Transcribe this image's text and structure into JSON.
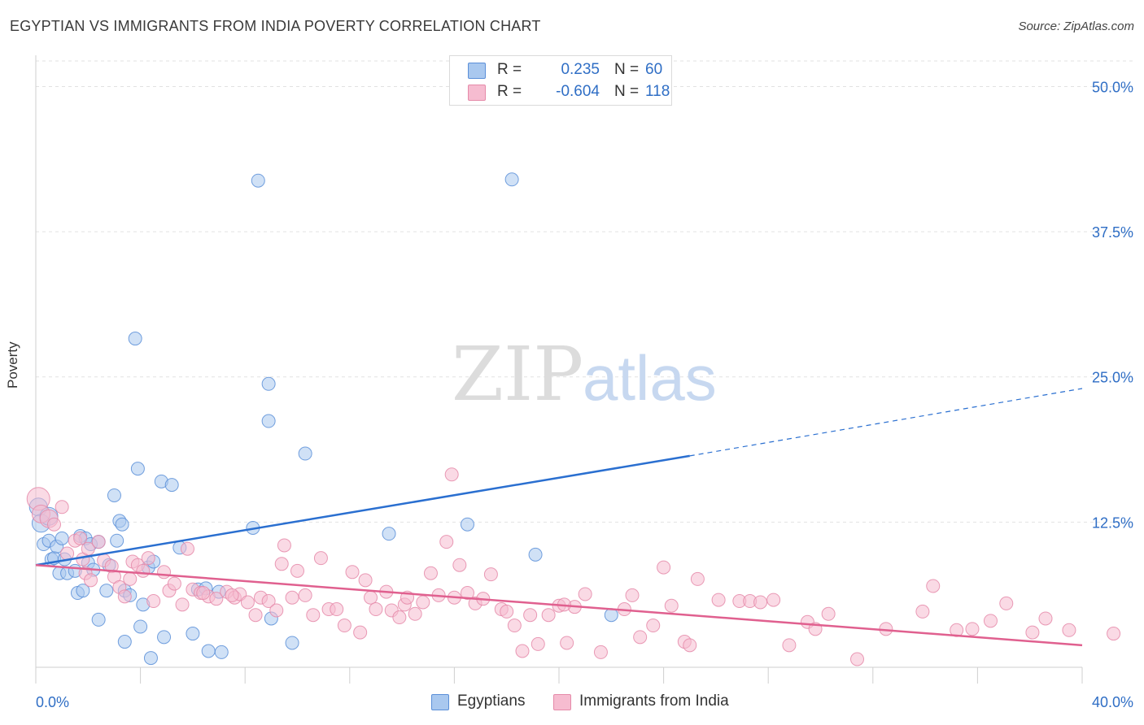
{
  "title": "EGYPTIAN VS IMMIGRANTS FROM INDIA POVERTY CORRELATION CHART",
  "source": "Source: ZipAtlas.com",
  "watermark": {
    "zip": "ZIP",
    "atlas": "atlas"
  },
  "legend": {
    "r_label": "R =",
    "n_label": "N =",
    "rows": [
      {
        "r": "0.235",
        "n": "60",
        "color": "#a9c8ef",
        "border": "#5b8fd8"
      },
      {
        "r": "-0.604",
        "n": "118",
        "color": "#f6bcd0",
        "border": "#e58aa9"
      }
    ]
  },
  "bottom_legend": [
    {
      "label": "Egyptians",
      "color": "#a9c8ef",
      "border": "#5b8fd8"
    },
    {
      "label": "Immigrants from India",
      "color": "#f6bcd0",
      "border": "#e58aa9"
    }
  ],
  "chart_data": {
    "type": "scatter",
    "title": "EGYPTIAN VS IMMIGRANTS FROM INDIA POVERTY CORRELATION CHART",
    "xlabel": "",
    "ylabel": "Poverty",
    "xlim": [
      0,
      40
    ],
    "ylim": [
      0,
      52.2
    ],
    "x_tick_labels": [
      {
        "value": 0,
        "label": "0.0%"
      },
      {
        "value": 40,
        "label": "40.0%"
      }
    ],
    "y_tick_labels": [
      {
        "value": 12.5,
        "label": "12.5%"
      },
      {
        "value": 25,
        "label": "25.0%"
      },
      {
        "value": 37.5,
        "label": "37.5%"
      },
      {
        "value": 50,
        "label": "50.0%"
      }
    ],
    "grid": true,
    "series": [
      {
        "name": "Egyptians",
        "color": "#5b8fd8",
        "fill": "#a9c8ef",
        "trendline": {
          "x0": 0,
          "y0": 8.8,
          "x1": 25,
          "y1": 18.2,
          "dashed_to_x": 40,
          "dashed_to_y": 24.0,
          "color": "#2a6fd0"
        },
        "points": [
          [
            0.1,
            13.8
          ],
          [
            0.2,
            12.4
          ],
          [
            0.3,
            10.6
          ],
          [
            0.5,
            13.0
          ],
          [
            0.5,
            10.9
          ],
          [
            0.6,
            9.3
          ],
          [
            0.7,
            9.4
          ],
          [
            0.8,
            10.4
          ],
          [
            0.9,
            8.1
          ],
          [
            1.0,
            11.1
          ],
          [
            1.1,
            9.3
          ],
          [
            1.2,
            8.1
          ],
          [
            1.5,
            8.3
          ],
          [
            1.6,
            6.4
          ],
          [
            1.7,
            11.3
          ],
          [
            1.8,
            6.6
          ],
          [
            1.9,
            11.1
          ],
          [
            2.0,
            9.0
          ],
          [
            2.1,
            10.6
          ],
          [
            2.2,
            8.4
          ],
          [
            2.4,
            10.8
          ],
          [
            2.4,
            4.1
          ],
          [
            2.7,
            6.6
          ],
          [
            2.8,
            8.8
          ],
          [
            3.0,
            14.8
          ],
          [
            3.1,
            10.9
          ],
          [
            3.2,
            12.6
          ],
          [
            3.3,
            12.3
          ],
          [
            3.4,
            6.6
          ],
          [
            3.4,
            2.2
          ],
          [
            3.6,
            6.2
          ],
          [
            3.8,
            28.3
          ],
          [
            3.9,
            17.1
          ],
          [
            4.0,
            3.5
          ],
          [
            4.1,
            5.4
          ],
          [
            4.3,
            8.6
          ],
          [
            4.4,
            0.8
          ],
          [
            4.5,
            9.1
          ],
          [
            4.8,
            16.0
          ],
          [
            4.9,
            2.6
          ],
          [
            5.2,
            15.7
          ],
          [
            5.5,
            10.3
          ],
          [
            6.0,
            2.9
          ],
          [
            6.2,
            6.7
          ],
          [
            6.5,
            6.8
          ],
          [
            6.6,
            1.4
          ],
          [
            7.1,
            1.3
          ],
          [
            8.3,
            12.0
          ],
          [
            8.5,
            41.9
          ],
          [
            8.9,
            24.4
          ],
          [
            8.9,
            21.2
          ],
          [
            9.0,
            4.2
          ],
          [
            9.8,
            2.1
          ],
          [
            10.3,
            18.4
          ],
          [
            13.5,
            11.5
          ],
          [
            16.5,
            12.3
          ],
          [
            18.2,
            42.0
          ],
          [
            19.1,
            9.7
          ],
          [
            22.0,
            4.5
          ],
          [
            7.0,
            6.5
          ]
        ]
      },
      {
        "name": "Immigrants from India",
        "color": "#e58aa9",
        "fill": "#f6bcd0",
        "trendline": {
          "x0": 0,
          "y0": 8.8,
          "x1": 40,
          "y1": 1.9,
          "color": "#e0608f"
        },
        "points": [
          [
            0.1,
            14.5
          ],
          [
            0.2,
            13.2
          ],
          [
            0.5,
            12.8
          ],
          [
            0.7,
            12.3
          ],
          [
            1.0,
            13.8
          ],
          [
            1.2,
            9.8
          ],
          [
            1.5,
            10.9
          ],
          [
            1.7,
            11.1
          ],
          [
            1.8,
            9.3
          ],
          [
            1.9,
            8.1
          ],
          [
            2.0,
            10.2
          ],
          [
            2.1,
            7.5
          ],
          [
            2.4,
            10.8
          ],
          [
            2.6,
            9.2
          ],
          [
            2.9,
            8.7
          ],
          [
            3.0,
            7.8
          ],
          [
            3.2,
            6.9
          ],
          [
            3.4,
            6.1
          ],
          [
            3.6,
            7.6
          ],
          [
            3.7,
            9.1
          ],
          [
            3.9,
            8.8
          ],
          [
            4.1,
            8.3
          ],
          [
            4.3,
            9.4
          ],
          [
            4.5,
            5.7
          ],
          [
            4.9,
            8.2
          ],
          [
            5.1,
            6.6
          ],
          [
            5.3,
            7.2
          ],
          [
            5.6,
            5.4
          ],
          [
            5.8,
            10.2
          ],
          [
            6.0,
            6.7
          ],
          [
            6.3,
            6.4
          ],
          [
            6.6,
            6.1
          ],
          [
            6.9,
            5.9
          ],
          [
            7.3,
            6.5
          ],
          [
            7.6,
            6.0
          ],
          [
            7.8,
            6.3
          ],
          [
            8.1,
            5.6
          ],
          [
            8.4,
            4.5
          ],
          [
            8.6,
            6.0
          ],
          [
            8.9,
            5.7
          ],
          [
            9.2,
            4.9
          ],
          [
            9.4,
            8.9
          ],
          [
            9.5,
            10.5
          ],
          [
            9.8,
            6.0
          ],
          [
            10.0,
            8.3
          ],
          [
            10.3,
            6.2
          ],
          [
            10.6,
            4.5
          ],
          [
            10.9,
            9.4
          ],
          [
            11.2,
            5.0
          ],
          [
            11.5,
            5.0
          ],
          [
            11.8,
            3.6
          ],
          [
            12.1,
            8.2
          ],
          [
            12.4,
            3.0
          ],
          [
            12.8,
            6.0
          ],
          [
            13.0,
            5.0
          ],
          [
            13.4,
            6.5
          ],
          [
            13.6,
            4.9
          ],
          [
            13.9,
            4.3
          ],
          [
            14.1,
            5.4
          ],
          [
            14.5,
            4.6
          ],
          [
            14.8,
            5.6
          ],
          [
            15.1,
            8.1
          ],
          [
            15.4,
            6.2
          ],
          [
            15.7,
            10.8
          ],
          [
            15.9,
            16.6
          ],
          [
            16.2,
            8.8
          ],
          [
            16.5,
            6.4
          ],
          [
            16.8,
            5.5
          ],
          [
            17.1,
            5.9
          ],
          [
            17.4,
            8.0
          ],
          [
            17.8,
            5.0
          ],
          [
            18.0,
            4.8
          ],
          [
            18.3,
            3.6
          ],
          [
            18.6,
            1.4
          ],
          [
            18.9,
            4.5
          ],
          [
            19.2,
            2.0
          ],
          [
            19.6,
            4.5
          ],
          [
            20.0,
            5.3
          ],
          [
            20.3,
            2.1
          ],
          [
            20.6,
            5.2
          ],
          [
            21.0,
            6.3
          ],
          [
            21.6,
            1.3
          ],
          [
            22.5,
            5.0
          ],
          [
            22.8,
            6.2
          ],
          [
            23.6,
            3.6
          ],
          [
            24.0,
            8.6
          ],
          [
            24.3,
            5.3
          ],
          [
            24.8,
            2.2
          ],
          [
            25.0,
            1.9
          ],
          [
            25.3,
            7.6
          ],
          [
            26.1,
            5.8
          ],
          [
            26.9,
            5.7
          ],
          [
            27.3,
            5.7
          ],
          [
            28.2,
            5.8
          ],
          [
            28.8,
            1.9
          ],
          [
            29.5,
            3.9
          ],
          [
            29.8,
            3.3
          ],
          [
            30.3,
            4.6
          ],
          [
            31.4,
            0.7
          ],
          [
            32.5,
            3.3
          ],
          [
            34.3,
            7.0
          ],
          [
            35.2,
            3.2
          ],
          [
            35.8,
            3.3
          ],
          [
            37.1,
            5.5
          ],
          [
            38.1,
            3.0
          ],
          [
            38.6,
            4.2
          ],
          [
            39.5,
            3.2
          ],
          [
            41.2,
            2.9
          ],
          [
            6.4,
            6.4
          ],
          [
            7.5,
            6.2
          ],
          [
            12.6,
            7.5
          ],
          [
            14.2,
            6.0
          ],
          [
            16.0,
            6.0
          ],
          [
            20.2,
            5.4
          ],
          [
            23.1,
            2.6
          ],
          [
            27.7,
            5.6
          ],
          [
            33.9,
            4.8
          ],
          [
            36.5,
            4.0
          ]
        ]
      }
    ]
  }
}
